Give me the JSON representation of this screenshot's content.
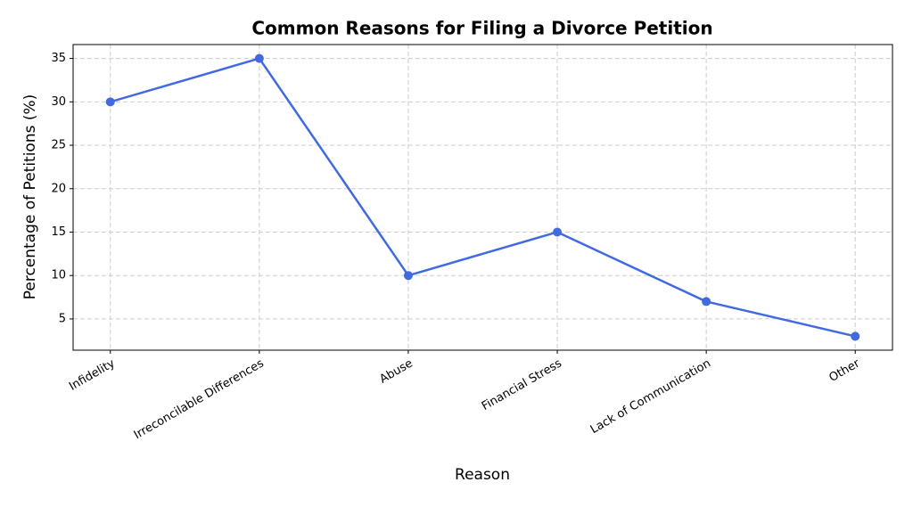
{
  "chart_data": {
    "type": "line",
    "title": "Common Reasons for Filing a Divorce Petition",
    "x_label": "Reason",
    "y_label": "Percentage of Petitions (%)",
    "categories": [
      "Infidelity",
      "Irreconcilable Differences",
      "Abuse",
      "Financial Stress",
      "Lack of Communication",
      "Other"
    ],
    "values": [
      30,
      35,
      10,
      15,
      7,
      3
    ],
    "color": "#4169e1",
    "ylim": [
      1.4,
      36.6
    ],
    "yticks": [
      5,
      10,
      15,
      20,
      25,
      30,
      35
    ],
    "grid": true
  }
}
